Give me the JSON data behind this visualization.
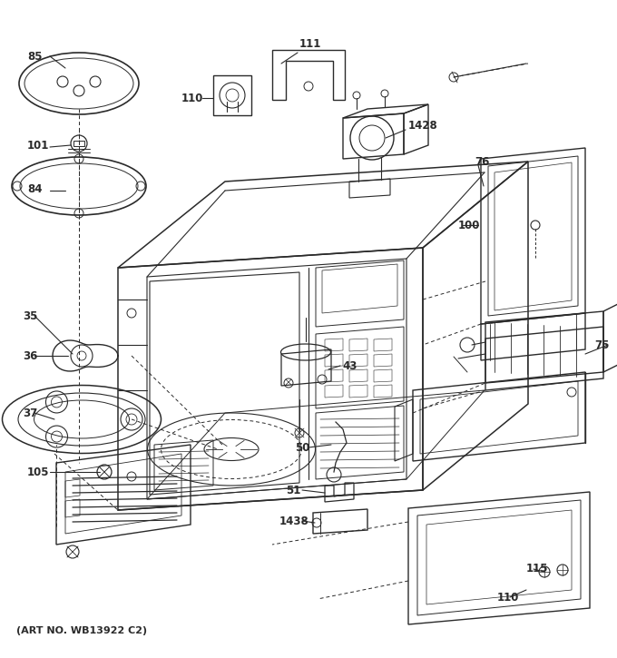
{
  "footer": "(ART NO. WB13922 C2)",
  "bg_color": "#ffffff",
  "line_color": "#2a2a2a",
  "fig_width": 6.8,
  "fig_height": 7.25,
  "dpi": 100
}
